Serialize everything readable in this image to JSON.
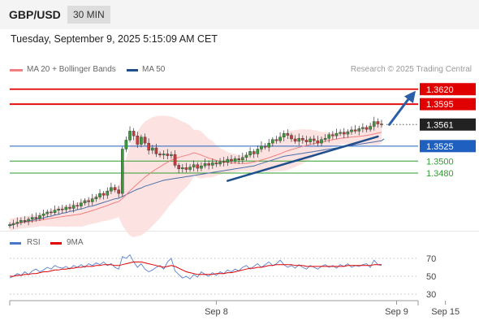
{
  "header": {
    "symbol": "GBP/USD",
    "timeframe": "30 MIN"
  },
  "datetime": "Tuesday, September 9, 2025 5:15:09 AM CET",
  "legend": {
    "ma20": "MA 20 + Bollinger Bands",
    "ma50": "MA 50",
    "rsi": "RSI",
    "rsi_ma": "9MA",
    "ma20_color": "#f08080",
    "ma50_color": "#1f4e8c",
    "rsi_color": "#4a78c8",
    "rsi_ma_color": "#e00000"
  },
  "credit": "Research © 2025 Trading Central",
  "chart_data": {
    "type": "candlestick",
    "price_axis": {
      "min": 1.34,
      "max": 1.364
    },
    "levels": [
      {
        "label": "1.3620",
        "value": 1.362,
        "kind": "resistance",
        "color": "#e00000",
        "badge": true
      },
      {
        "label": "1.3595",
        "value": 1.3595,
        "kind": "resistance",
        "color": "#e00000",
        "badge": true
      },
      {
        "label": "1.3561",
        "value": 1.3561,
        "kind": "last",
        "color": "#222222",
        "badge": true
      },
      {
        "label": "1.3525",
        "value": 1.3525,
        "kind": "pivot",
        "color": "#1f5fbf",
        "badge": true
      },
      {
        "label": "1.3500",
        "value": 1.35,
        "kind": "support",
        "color": "#2f9e2f",
        "badge": false
      },
      {
        "label": "1.3480",
        "value": 1.348,
        "kind": "support",
        "color": "#2f9e2f",
        "badge": false
      }
    ],
    "close": [
      1.3394,
      1.3396,
      1.3398,
      1.3401,
      1.34,
      1.3403,
      1.3406,
      1.3404,
      1.3409,
      1.3412,
      1.3415,
      1.3414,
      1.3418,
      1.342,
      1.3419,
      1.3423,
      1.3421,
      1.3426,
      1.3425,
      1.343,
      1.3434,
      1.3432,
      1.3437,
      1.344,
      1.3446,
      1.3443,
      1.345,
      1.3456,
      1.3452,
      1.3446,
      1.352,
      1.3535,
      1.355,
      1.3542,
      1.3528,
      1.354,
      1.353,
      1.3518,
      1.3522,
      1.3512,
      1.351,
      1.3512,
      1.3509,
      1.3511,
      1.3493,
      1.3487,
      1.3489,
      1.3486,
      1.349,
      1.3494,
      1.3488,
      1.3492,
      1.3496,
      1.3493,
      1.3497,
      1.3495,
      1.3499,
      1.3498,
      1.3503,
      1.35,
      1.3504,
      1.3502,
      1.3506,
      1.351,
      1.3516,
      1.3512,
      1.352,
      1.3525,
      1.3523,
      1.353,
      1.3536,
      1.3534,
      1.354,
      1.3546,
      1.3543,
      1.3537,
      1.3533,
      1.3538,
      1.3535,
      1.3532,
      1.3537,
      1.3534,
      1.353,
      1.3536,
      1.3538,
      1.3544,
      1.3542,
      1.3546,
      1.3548,
      1.3545,
      1.3549,
      1.3552,
      1.355,
      1.3554,
      1.3556,
      1.3553,
      1.3558,
      1.3566,
      1.3562,
      1.3561
    ],
    "ma50": [
      1.3392,
      1.3394,
      1.3396,
      1.3397,
      1.3399,
      1.34,
      1.3401,
      1.3403,
      1.3404,
      1.3405,
      1.3407,
      1.3408,
      1.341,
      1.3411,
      1.3413,
      1.3414,
      1.3416,
      1.3417,
      1.3419,
      1.342,
      1.3422,
      1.3424,
      1.3425,
      1.3427,
      1.3429,
      1.3431,
      1.3433,
      1.3435,
      1.3437,
      1.3438,
      1.3441,
      1.3444,
      1.3447,
      1.345,
      1.3453,
      1.3455,
      1.3458,
      1.346,
      1.3462,
      1.3464,
      1.3466,
      1.3468,
      1.3469,
      1.347,
      1.3471,
      1.3472,
      1.3473,
      1.3474,
      1.3475,
      1.3476,
      1.3477,
      1.3478,
      1.3479,
      1.348,
      1.3481,
      1.3482,
      1.3483,
      1.3484,
      1.3485,
      1.3486,
      1.3487,
      1.3488,
      1.3489,
      1.349,
      1.3491,
      1.3492,
      1.3494,
      1.3496,
      1.3498,
      1.35,
      1.3502,
      1.3504,
      1.3506,
      1.3508,
      1.3509,
      1.351,
      1.3511,
      1.3512,
      1.3513,
      1.3514,
      1.3515,
      1.3516,
      1.3517,
      1.3518,
      1.3519,
      1.352,
      1.3521,
      1.3522,
      1.3523,
      1.3524,
      1.3525,
      1.3526,
      1.3527,
      1.3528,
      1.3529,
      1.353,
      1.3531,
      1.3532,
      1.3533,
      1.3534
    ],
    "trendlines": [
      {
        "from": [
          58,
          1.3467
        ],
        "to": [
          98,
          1.3541
        ],
        "color": "#1f4e8c"
      }
    ],
    "projection_arrow": {
      "from": [
        100,
        1.3561
      ],
      "to": [
        107,
        1.362
      ],
      "color": "#2a5fa8"
    },
    "x_tick_labels": [
      {
        "label": "Sep 8",
        "index": 55
      },
      {
        "label": "Sep 9",
        "index": 103
      },
      {
        "label": "Sep 15",
        "index": 116
      }
    ],
    "rsi": {
      "min": 30,
      "max": 70,
      "levels": [
        70,
        50,
        30
      ],
      "tick_labels": [
        "70",
        "50",
        "30"
      ],
      "rsi_values": [
        48,
        50,
        53,
        51,
        55,
        52,
        56,
        58,
        55,
        57,
        60,
        58,
        62,
        60,
        59,
        61,
        58,
        62,
        60,
        63,
        60,
        64,
        62,
        65,
        63,
        66,
        62,
        64,
        60,
        58,
        72,
        70,
        74,
        66,
        60,
        64,
        58,
        55,
        57,
        60,
        62,
        58,
        66,
        70,
        56,
        52,
        48,
        50,
        47,
        52,
        49,
        55,
        52,
        50,
        54,
        51,
        55,
        53,
        57,
        55,
        58,
        56,
        60,
        62,
        58,
        61,
        64,
        60,
        63,
        66,
        62,
        64,
        68,
        63,
        60,
        62,
        59,
        63,
        60,
        58,
        62,
        60,
        58,
        61,
        63,
        60,
        62,
        59,
        63,
        61,
        64,
        60,
        62,
        61,
        63,
        64,
        60,
        68,
        63,
        62
      ],
      "ma_values": [
        50,
        50,
        51,
        51,
        52,
        52,
        53,
        53,
        54,
        55,
        55,
        56,
        57,
        57,
        58,
        58,
        59,
        59,
        60,
        60,
        61,
        61,
        61,
        62,
        62,
        63,
        63,
        63,
        62,
        62,
        63,
        64,
        65,
        66,
        66,
        66,
        65,
        64,
        63,
        62,
        61,
        60,
        61,
        62,
        61,
        59,
        57,
        55,
        54,
        53,
        52,
        52,
        52,
        52,
        52,
        53,
        53,
        53,
        54,
        54,
        55,
        56,
        57,
        58,
        59,
        59,
        60,
        60,
        61,
        62,
        62,
        63,
        63,
        63,
        63,
        63,
        62,
        62,
        62,
        61,
        61,
        61,
        61,
        61,
        61,
        61,
        61,
        61,
        61,
        61,
        62,
        62,
        62,
        62,
        62,
        62,
        62,
        63,
        63,
        63
      ]
    }
  }
}
